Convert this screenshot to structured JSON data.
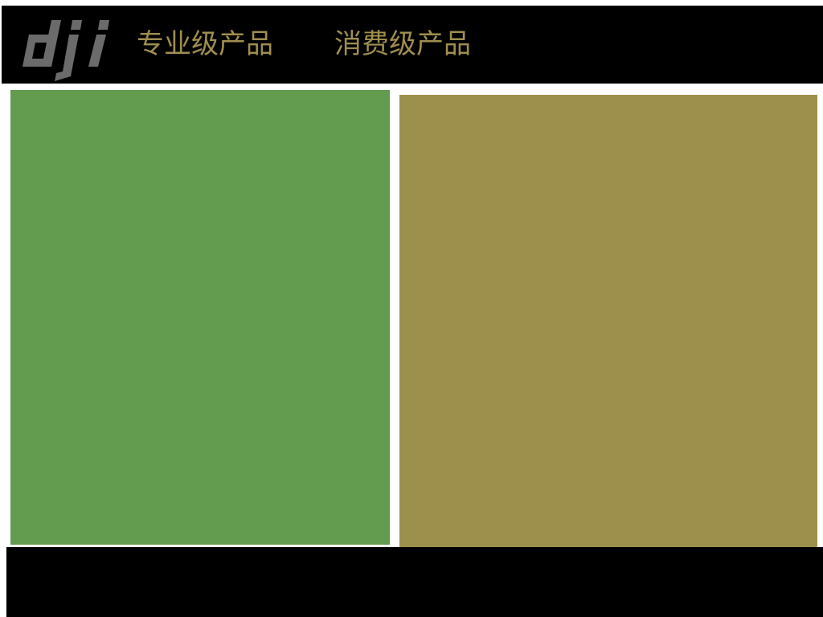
{
  "header": {
    "logo_icon": "dji-logo",
    "logo_text": "dji",
    "logo_color": "#6b6b6b",
    "nav": [
      {
        "label": "专业级产品"
      },
      {
        "label": "消费级产品"
      }
    ],
    "nav_color": "#a08e4f",
    "background": "#000000"
  },
  "panels": {
    "professional": {
      "color": "#639c4e"
    },
    "consumer": {
      "color": "#9d8f4c"
    }
  },
  "footer": {
    "background": "#000000"
  }
}
